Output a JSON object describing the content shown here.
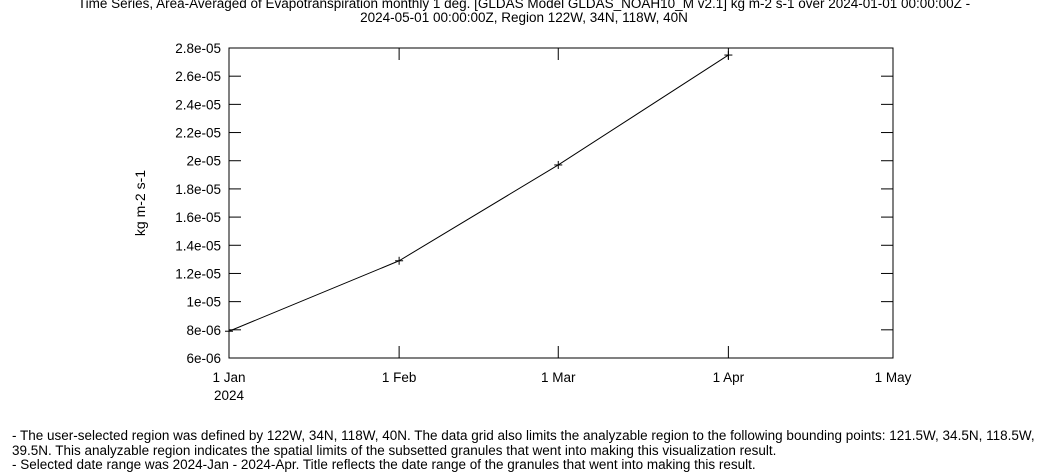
{
  "title": {
    "line1": "Time Series, Area-Averaged of Evapotranspiration monthly 1 deg. [GLDAS Model GLDAS_NOAH10_M v2.1] kg m-2 s-1 over 2024-01-01 00:00:00Z -",
    "line2": "2024-05-01 00:00:00Z, Region 122W, 34N, 118W, 40N"
  },
  "notes": {
    "line1": "- The user-selected region was defined by 122W, 34N, 118W, 40N. The data grid also limits the analyzable region to the following bounding points: 121.5W, 34.5N, 118.5W, 39.5N. This analyzable region indicates the spatial limits of the subsetted granules that went into making this visualization result.",
    "line2": "- Selected date range was 2024-Jan - 2024-Apr. Title reflects the date range of the granules that went into making this result."
  },
  "chart_data": {
    "type": "line",
    "title": "Time Series, Area-Averaged of Evapotranspiration monthly 1 deg. [GLDAS Model GLDAS_NOAH10_M v2.1] kg m-2 s-1 over 2024-01-01 00:00:00Z - 2024-05-01 00:00:00Z, Region 122W, 34N, 118W, 40N",
    "xlabel": "",
    "ylabel": "kg m-2 s-1",
    "x": [
      "2024-01-01",
      "2024-02-01",
      "2024-03-01",
      "2024-04-01"
    ],
    "series": [
      {
        "values": [
          7.9e-06,
          1.29e-05,
          1.97e-05,
          2.75e-05
        ]
      }
    ],
    "xlim": [
      "2024-01-01",
      "2024-05-01"
    ],
    "ylim": [
      6e-06,
      2.8e-05
    ],
    "x_ticks": [
      {
        "date": "2024-01-01",
        "label": "1 Jan"
      },
      {
        "date": "2024-02-01",
        "label": "1 Feb"
      },
      {
        "date": "2024-03-01",
        "label": "1 Mar"
      },
      {
        "date": "2024-04-01",
        "label": "1 Apr"
      },
      {
        "date": "2024-05-01",
        "label": "1 May"
      }
    ],
    "x_sublabel": "2024",
    "y_ticks": [
      6e-06,
      8e-06,
      1e-05,
      1.2e-05,
      1.4e-05,
      1.6e-05,
      1.8e-05,
      2e-05,
      2.2e-05,
      2.4e-05,
      2.6e-05,
      2.8e-05
    ],
    "y_tick_labels": [
      "6e-06",
      "8e-06",
      "1e-05",
      "1.2e-05",
      "1.4e-05",
      "1.6e-05",
      "1.8e-05",
      "2e-05",
      "2.2e-05",
      "2.4e-05",
      "2.6e-05",
      "2.8e-05"
    ],
    "grid": false,
    "line_color": "#000000",
    "marker": "plus"
  }
}
